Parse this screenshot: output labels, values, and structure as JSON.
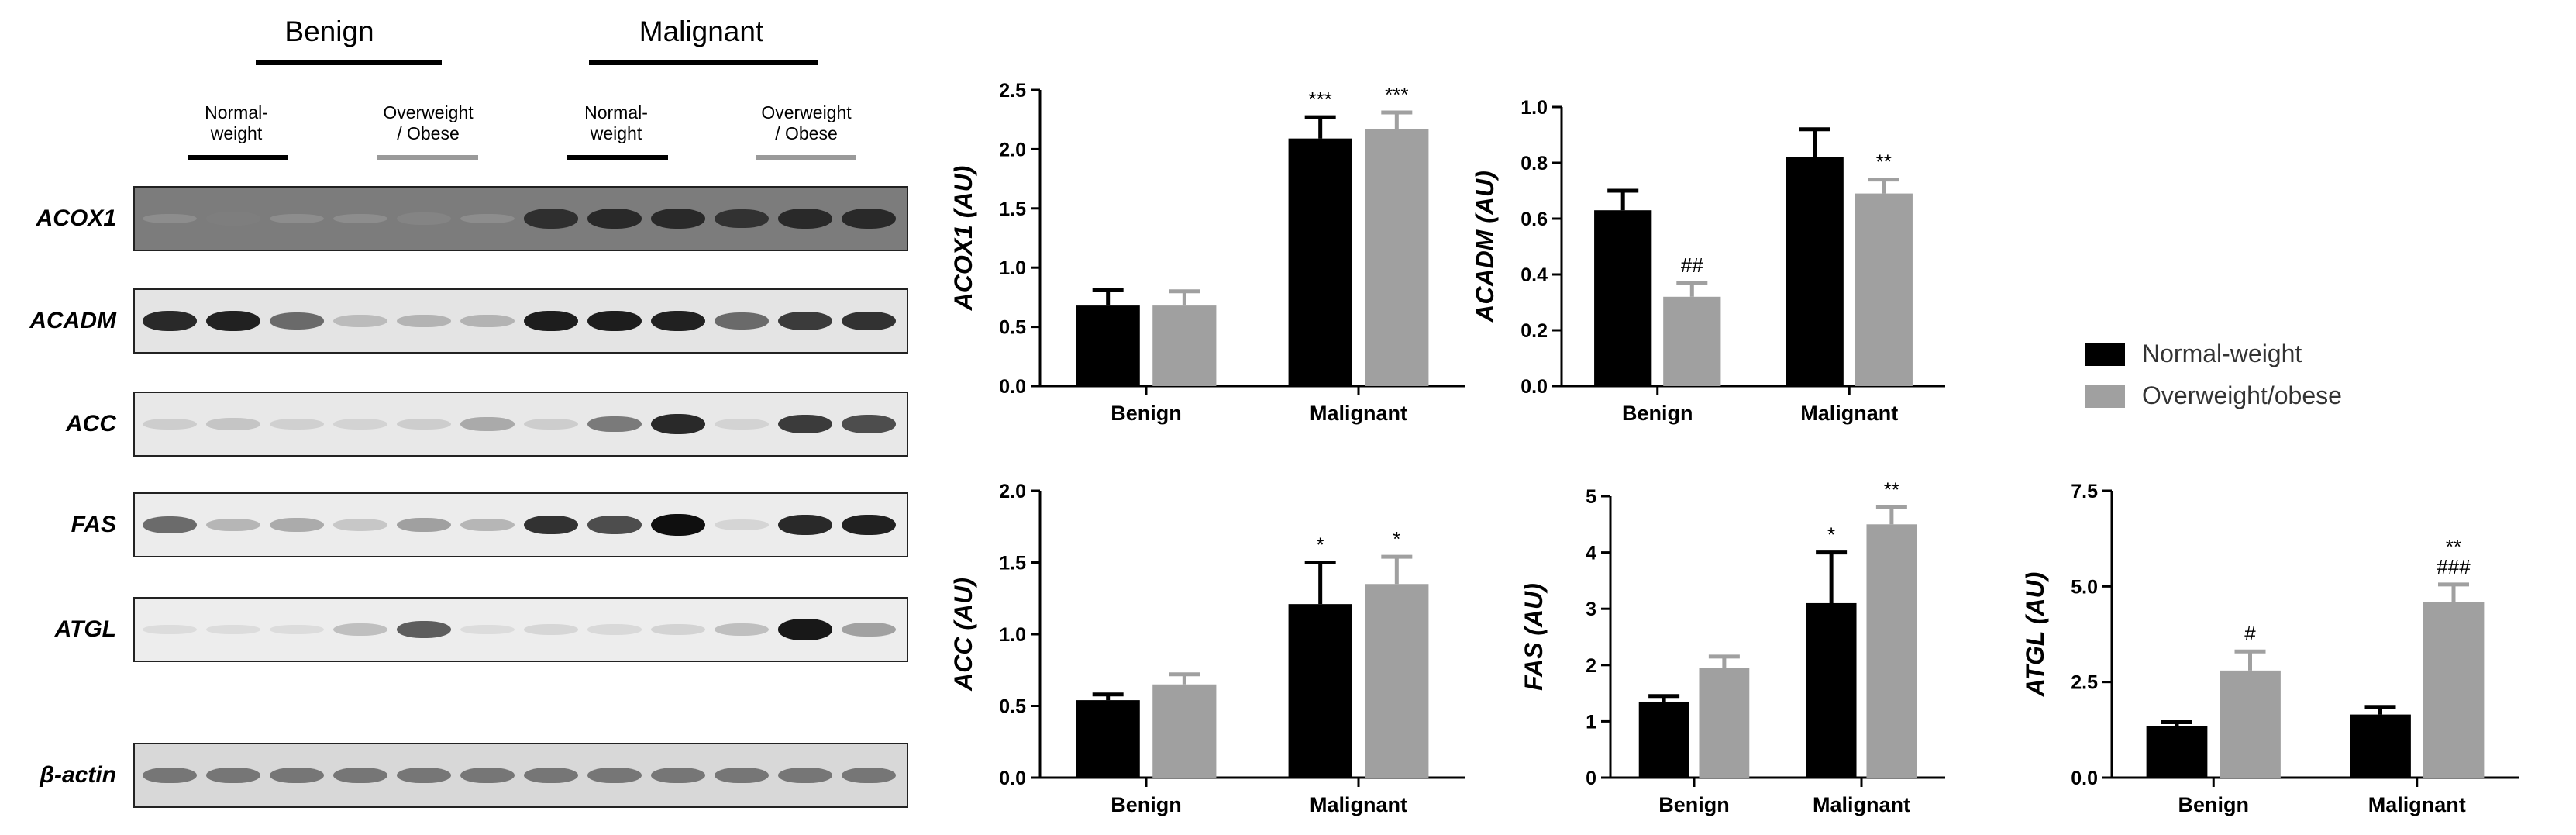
{
  "blot": {
    "groups": [
      "Benign",
      "Malignant"
    ],
    "subgroups": [
      "Normal-\nweight",
      "Overweight\n/ Obese",
      "Normal-\nweight",
      "Overweight\n/ Obese"
    ],
    "rows": [
      {
        "label": "ACOX1",
        "bg": "#7c7c7c",
        "lanes": [
          0.02,
          0.35,
          0.02,
          0.02,
          0.3,
          0.02,
          0.82,
          0.85,
          0.85,
          0.8,
          0.85,
          0.85
        ]
      },
      {
        "label": "ACADM",
        "bg": "#e4e4e4",
        "lanes": [
          0.85,
          0.9,
          0.6,
          0.25,
          0.3,
          0.3,
          0.92,
          0.92,
          0.9,
          0.6,
          0.75,
          0.8
        ]
      },
      {
        "label": "ACC",
        "bg": "#e8e8e8",
        "lanes": [
          0.15,
          0.2,
          0.12,
          0.1,
          0.15,
          0.35,
          0.15,
          0.55,
          0.85,
          0.1,
          0.75,
          0.7
        ]
      },
      {
        "label": "FAS",
        "bg": "#ececec",
        "lanes": [
          0.6,
          0.3,
          0.35,
          0.2,
          0.4,
          0.3,
          0.8,
          0.7,
          1.0,
          0.1,
          0.85,
          0.9
        ]
      },
      {
        "label": "ATGL",
        "bg": "#ededed",
        "lanes": [
          0.05,
          0.05,
          0.05,
          0.25,
          0.65,
          0.05,
          0.1,
          0.08,
          0.12,
          0.25,
          0.95,
          0.4
        ]
      },
      {
        "label": "β-actin",
        "bg": "#d8d8d8",
        "lanes": [
          0.55,
          0.55,
          0.55,
          0.55,
          0.55,
          0.55,
          0.55,
          0.55,
          0.55,
          0.55,
          0.55,
          0.55
        ]
      }
    ]
  },
  "legend": [
    {
      "label": "Normal-weight",
      "color": "#000000"
    },
    {
      "label": "Overweight/obese",
      "color": "#a0a0a0"
    }
  ],
  "chart_data": [
    {
      "type": "bar",
      "ylabel": "ACOX1 (AU)",
      "categories": [
        "Benign",
        "Malignant"
      ],
      "ylim": [
        0,
        2.5
      ],
      "yticks": [
        "0.0",
        "0.5",
        "1.0",
        "1.5",
        "2.0",
        "2.5"
      ],
      "series": [
        {
          "name": "Normal-weight",
          "values": [
            0.68,
            2.09
          ],
          "errors": [
            0.13,
            0.18
          ],
          "annotations": [
            "",
            "***"
          ]
        },
        {
          "name": "Overweight/obese",
          "values": [
            0.68,
            2.17
          ],
          "errors": [
            0.12,
            0.14
          ],
          "annotations": [
            "",
            "***"
          ]
        }
      ]
    },
    {
      "type": "bar",
      "ylabel": "ACADM (AU)",
      "categories": [
        "Benign",
        "Malignant"
      ],
      "ylim": [
        0,
        1.0
      ],
      "yticks": [
        "0.0",
        "0.2",
        "0.4",
        "0.6",
        "0.8",
        "1.0"
      ],
      "series": [
        {
          "name": "Normal-weight",
          "values": [
            0.63,
            0.82
          ],
          "errors": [
            0.07,
            0.1
          ],
          "annotations": [
            "",
            ""
          ]
        },
        {
          "name": "Overweight/obese",
          "values": [
            0.32,
            0.69
          ],
          "errors": [
            0.05,
            0.05
          ],
          "annotations": [
            "##",
            "**"
          ]
        }
      ]
    },
    {
      "type": "bar",
      "ylabel": "ACC (AU)",
      "categories": [
        "Benign",
        "Malignant"
      ],
      "ylim": [
        0,
        2.0
      ],
      "yticks": [
        "0.0",
        "0.5",
        "1.0",
        "1.5",
        "2.0"
      ],
      "series": [
        {
          "name": "Normal-weight",
          "values": [
            0.54,
            1.21
          ],
          "errors": [
            0.04,
            0.29
          ],
          "annotations": [
            "",
            "*"
          ]
        },
        {
          "name": "Overweight/obese",
          "values": [
            0.65,
            1.35
          ],
          "errors": [
            0.07,
            0.19
          ],
          "annotations": [
            "",
            "*"
          ]
        }
      ]
    },
    {
      "type": "bar",
      "ylabel": "FAS (AU)",
      "categories": [
        "Benign",
        "Malignant"
      ],
      "ylim": [
        0,
        5
      ],
      "yticks": [
        "0",
        "1",
        "2",
        "3",
        "4",
        "5"
      ],
      "series": [
        {
          "name": "Normal-weight",
          "values": [
            1.35,
            3.1
          ],
          "errors": [
            0.1,
            0.9
          ],
          "annotations": [
            "",
            "*"
          ]
        },
        {
          "name": "Overweight/obese",
          "values": [
            1.95,
            4.5
          ],
          "errors": [
            0.2,
            0.3
          ],
          "annotations": [
            "",
            "**"
          ]
        }
      ]
    },
    {
      "type": "bar",
      "ylabel": "ATGL (AU)",
      "categories": [
        "Benign",
        "Malignant"
      ],
      "ylim": [
        0,
        7.5
      ],
      "yticks": [
        "0.0",
        "2.5",
        "5.0",
        "7.5"
      ],
      "series": [
        {
          "name": "Normal-weight",
          "values": [
            1.35,
            1.65
          ],
          "errors": [
            0.1,
            0.2
          ],
          "annotations": [
            "",
            ""
          ]
        },
        {
          "name": "Overweight/obese",
          "values": [
            2.8,
            4.6
          ],
          "errors": [
            0.5,
            0.45
          ],
          "annotations": [
            "#",
            "**\n###"
          ]
        }
      ]
    }
  ]
}
